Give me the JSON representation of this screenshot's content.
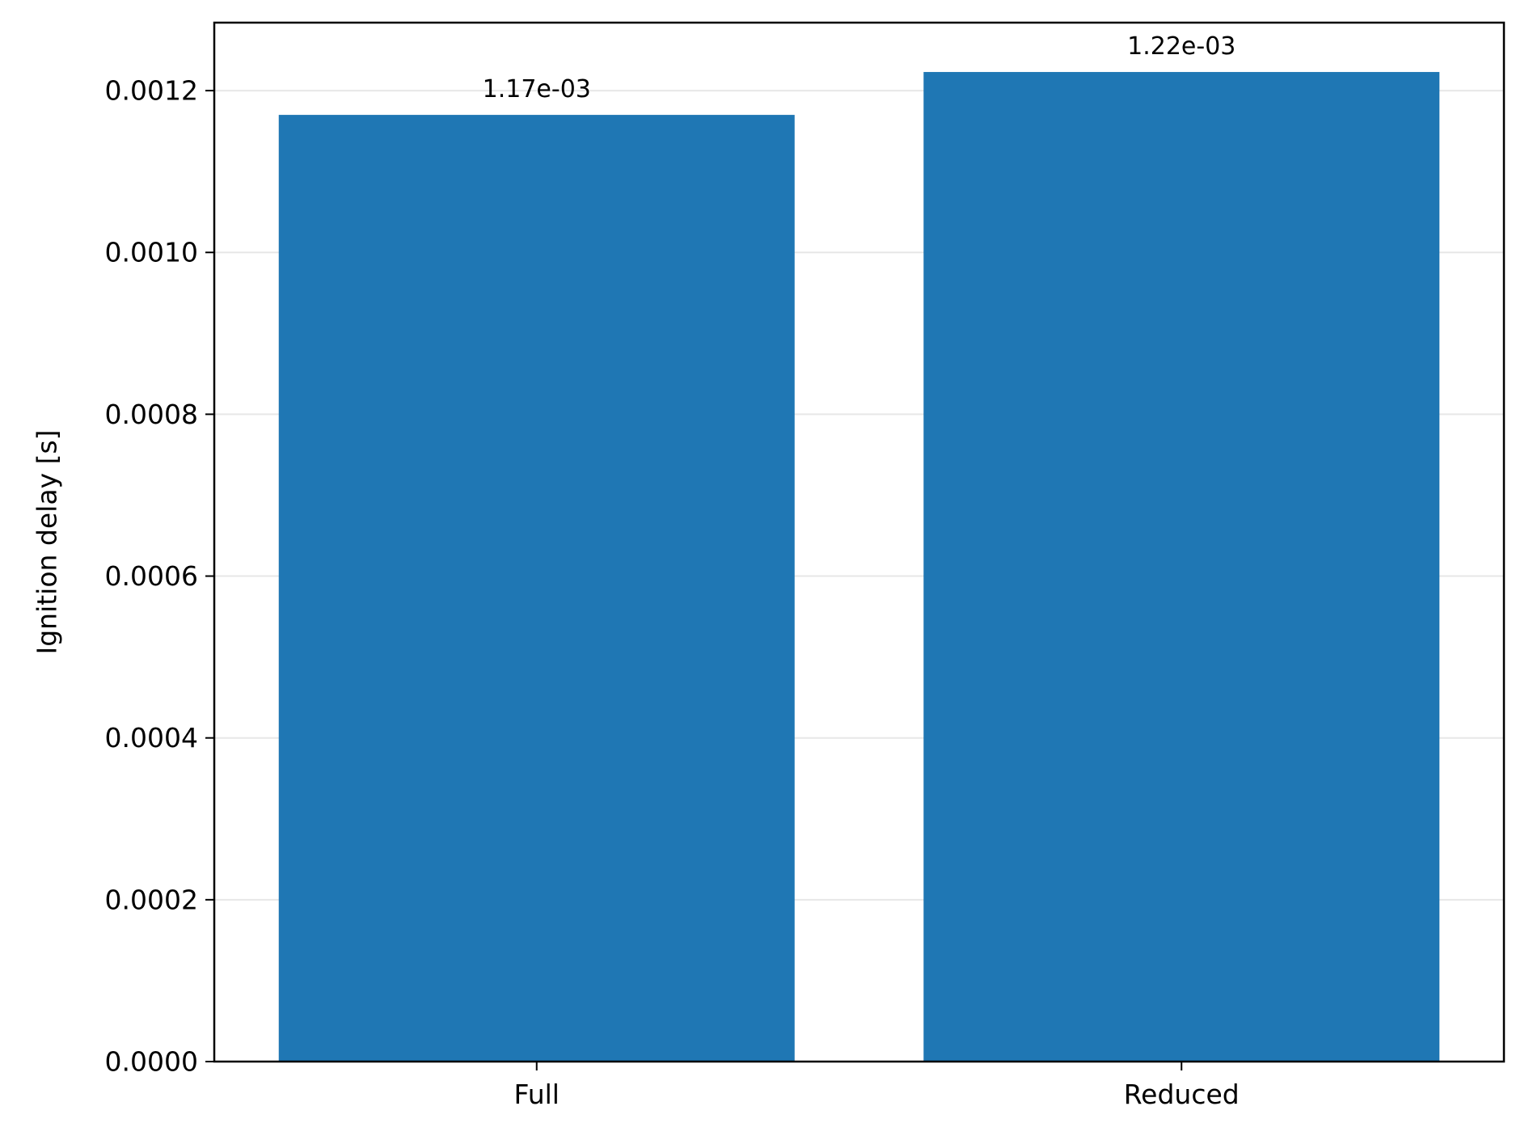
{
  "chart_data": {
    "type": "bar",
    "title": "",
    "xlabel": "",
    "ylabel": "Ignition delay [s]",
    "categories": [
      "Full",
      "Reduced"
    ],
    "values": [
      0.00117,
      0.001223
    ],
    "value_labels": [
      "1.17e-03",
      "1.22e-03"
    ],
    "ylim": [
      0,
      0.001284
    ],
    "yticks": [
      0,
      0.0002,
      0.0004,
      0.0006,
      0.0008,
      0.001,
      0.0012
    ],
    "ytick_labels": [
      "0.0000",
      "0.0002",
      "0.0004",
      "0.0006",
      "0.0008",
      "0.0010",
      "0.0012"
    ],
    "grid": "y-major",
    "legend": "none",
    "bar_color": "#1f77b4"
  }
}
